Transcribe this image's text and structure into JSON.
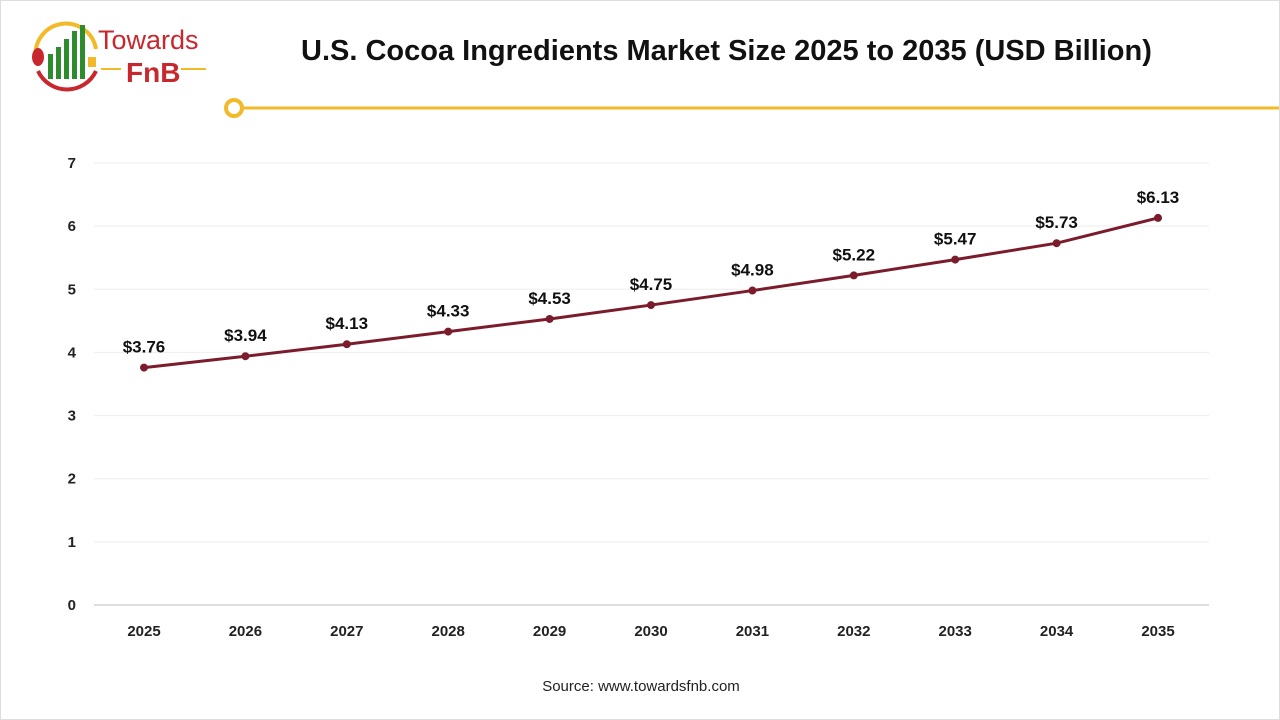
{
  "brand": {
    "logo_text_1": "Towards",
    "logo_text_2": "FnB"
  },
  "colors": {
    "line": "#7b1c2c",
    "accent": "#f2b928",
    "logo_red": "#c8282d",
    "logo_green": "#2e8b2e"
  },
  "source": "Source: www.towardsfnb.com",
  "chart_data": {
    "type": "line",
    "title": "U.S. Cocoa Ingredients Market Size 2025 to 2035 (USD Billion)",
    "categories": [
      "2025",
      "2026",
      "2027",
      "2028",
      "2029",
      "2030",
      "2031",
      "2032",
      "2033",
      "2034",
      "2035"
    ],
    "values": [
      3.76,
      3.94,
      4.13,
      4.33,
      4.53,
      4.75,
      4.98,
      5.22,
      5.47,
      5.73,
      6.13
    ],
    "data_labels": [
      "$3.76",
      "$3.94",
      "$4.13",
      "$4.33",
      "$4.53",
      "$4.75",
      "$4.98",
      "$5.22",
      "$5.47",
      "$5.73",
      "$6.13"
    ],
    "yticks": [
      0,
      1,
      2,
      3,
      4,
      5,
      6,
      7
    ],
    "ylim": [
      0,
      7
    ],
    "grid": true,
    "legend": "none"
  }
}
